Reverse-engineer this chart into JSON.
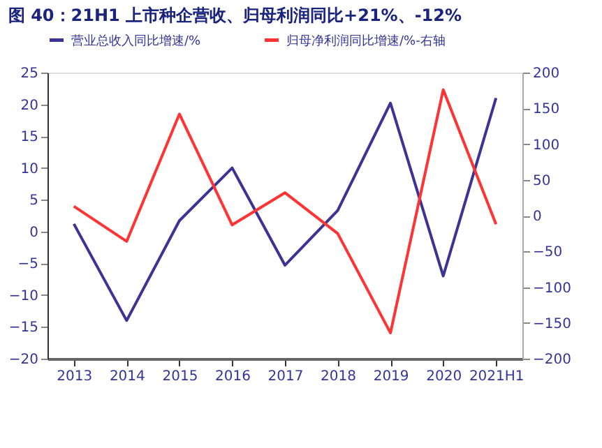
{
  "chart_data": {
    "type": "line",
    "title": "图 40：21H1 上市种企营收、归母利润同比+21%、-12%",
    "categories": [
      "2013",
      "2014",
      "2015",
      "2016",
      "2017",
      "2018",
      "2019",
      "2020",
      "2021H1"
    ],
    "series": [
      {
        "name": "营业总收入同比增速/%",
        "color": "#3c3494",
        "values": [
          1.2,
          -14,
          1.7,
          10,
          -5.3,
          3.3,
          20.2,
          -7,
          21
        ]
      },
      {
        "name": "归母净利润同比增速/%-右轴",
        "color": "#ff3333",
        "axis": "y2",
        "values": [
          13,
          -36,
          142,
          -13,
          32,
          -25,
          -164,
          176,
          -12
        ]
      }
    ],
    "ylim": [
      -20,
      25
    ],
    "yticks": [
      -20,
      -15,
      -10,
      -5,
      0,
      5,
      10,
      15,
      20,
      25
    ],
    "y2lim": [
      -200,
      200
    ],
    "y2ticks": [
      -200,
      -150,
      -100,
      -50,
      0,
      50,
      100,
      150,
      200
    ],
    "legend": "top",
    "grid": false,
    "marker": "none",
    "line_style": "solid"
  }
}
